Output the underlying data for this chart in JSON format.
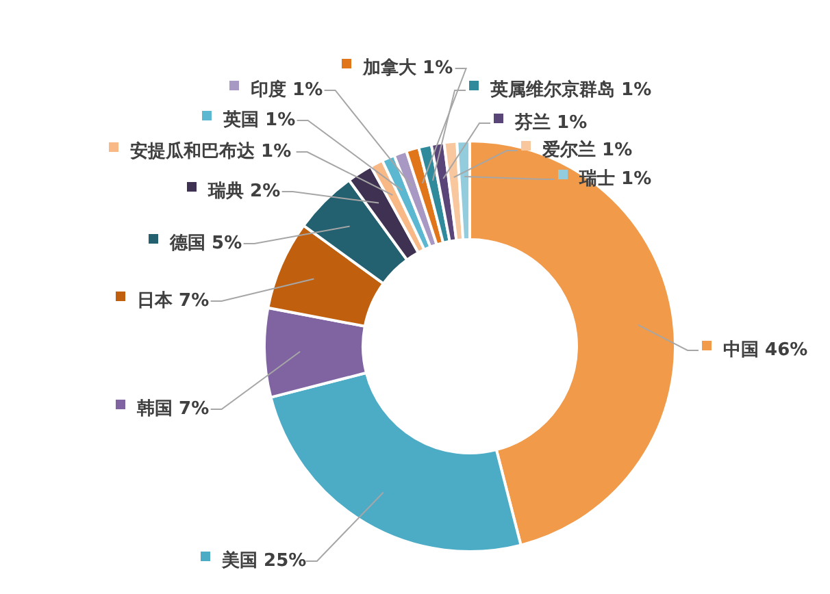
{
  "chart_data": {
    "type": "donut",
    "categories": [
      "中国",
      "美国",
      "韩国",
      "日本",
      "德国",
      "瑞典",
      "安提瓜和巴布达",
      "英国",
      "印度",
      "加拿大",
      "英属维尔京群岛",
      "芬兰",
      "爱尔兰",
      "瑞士"
    ],
    "values": [
      46,
      25,
      7,
      7,
      5,
      2,
      1,
      1,
      1,
      1,
      1,
      1,
      1,
      1
    ],
    "value_labels": [
      "46%",
      "25%",
      "7%",
      "7%",
      "5%",
      "2%",
      "1%",
      "1%",
      "1%",
      "1%",
      "1%",
      "1%",
      "1%",
      "1%"
    ],
    "colors": [
      "#f09a4a",
      "#4cacc6",
      "#8064a2",
      "#c0600f",
      "#236070",
      "#3f3151",
      "#f8b987",
      "#5bb8d0",
      "#a898c4",
      "#e0751a",
      "#2f8a9c",
      "#5a4578",
      "#f9c79e",
      "#93cddd"
    ],
    "legend": "left"
  }
}
